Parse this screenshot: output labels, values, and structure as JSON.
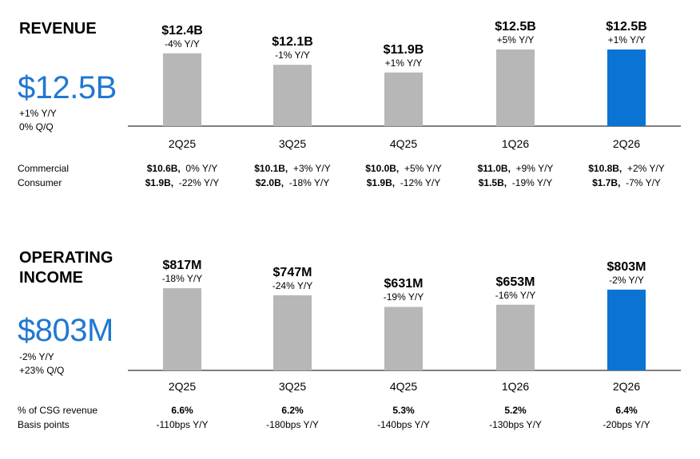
{
  "colors": {
    "bar_default": "#b7b7b7",
    "bar_highlight": "#0a73d4",
    "accent_text": "#1f78d1",
    "axis": "#333333"
  },
  "revenue": {
    "title": "REVENUE",
    "headline": "$12.5B",
    "sub1": "+1% Y/Y",
    "sub2": "0% Q/Q",
    "row_labels": [
      "Commercial",
      "Consumer"
    ],
    "commercial": [
      {
        "amount": "$10.6B,",
        "change": "0% Y/Y"
      },
      {
        "amount": "$10.1B,",
        "change": "+3% Y/Y"
      },
      {
        "amount": "$10.0B,",
        "change": "+5% Y/Y"
      },
      {
        "amount": "$11.0B,",
        "change": "+9% Y/Y"
      },
      {
        "amount": "$10.8B,",
        "change": "+2% Y/Y"
      }
    ],
    "consumer": [
      {
        "amount": "$1.9B,",
        "change": "-22% Y/Y"
      },
      {
        "amount": "$2.0B,",
        "change": "-18% Y/Y"
      },
      {
        "amount": "$1.9B,",
        "change": "-12% Y/Y"
      },
      {
        "amount": "$1.5B,",
        "change": "-19% Y/Y"
      },
      {
        "amount": "$1.7B,",
        "change": "-7% Y/Y"
      }
    ]
  },
  "operating": {
    "title_line1": "OPERATING",
    "title_line2": "INCOME",
    "headline": "$803M",
    "sub1": "-2% Y/Y",
    "sub2": "+23% Q/Q",
    "row_labels": [
      "% of CSG revenue",
      "Basis points"
    ],
    "pct": [
      "6.6%",
      "6.2%",
      "5.3%",
      "5.2%",
      "6.4%"
    ],
    "bps": [
      "-110bps Y/Y",
      "-180bps Y/Y",
      "-140bps Y/Y",
      "-130bps Y/Y",
      "-20bps Y/Y"
    ]
  },
  "chart_data": [
    {
      "type": "bar",
      "categories": [
        "2Q25",
        "3Q25",
        "4Q25",
        "1Q26",
        "2Q26"
      ],
      "values": [
        12.4,
        12.1,
        11.9,
        12.5,
        12.5
      ],
      "value_labels": [
        "$12.4B",
        "$12.1B",
        "$11.9B",
        "$12.5B",
        "$12.5B"
      ],
      "change_labels": [
        "-4% Y/Y",
        "-1% Y/Y",
        "+1% Y/Y",
        "+5% Y/Y",
        "+1% Y/Y"
      ],
      "highlight_index": 4,
      "ylim": [
        10.5,
        12.5
      ],
      "title": "REVENUE"
    },
    {
      "type": "bar",
      "categories": [
        "2Q25",
        "3Q25",
        "4Q25",
        "1Q26",
        "2Q26"
      ],
      "values": [
        817,
        747,
        631,
        653,
        803
      ],
      "value_labels": [
        "$817M",
        "$747M",
        "$631M",
        "$653M",
        "$803M"
      ],
      "change_labels": [
        "-18% Y/Y",
        "-24% Y/Y",
        "-19% Y/Y",
        "-16% Y/Y",
        "-2% Y/Y"
      ],
      "highlight_index": 4,
      "ylim": [
        0,
        1000
      ],
      "title": "OPERATING INCOME"
    }
  ]
}
